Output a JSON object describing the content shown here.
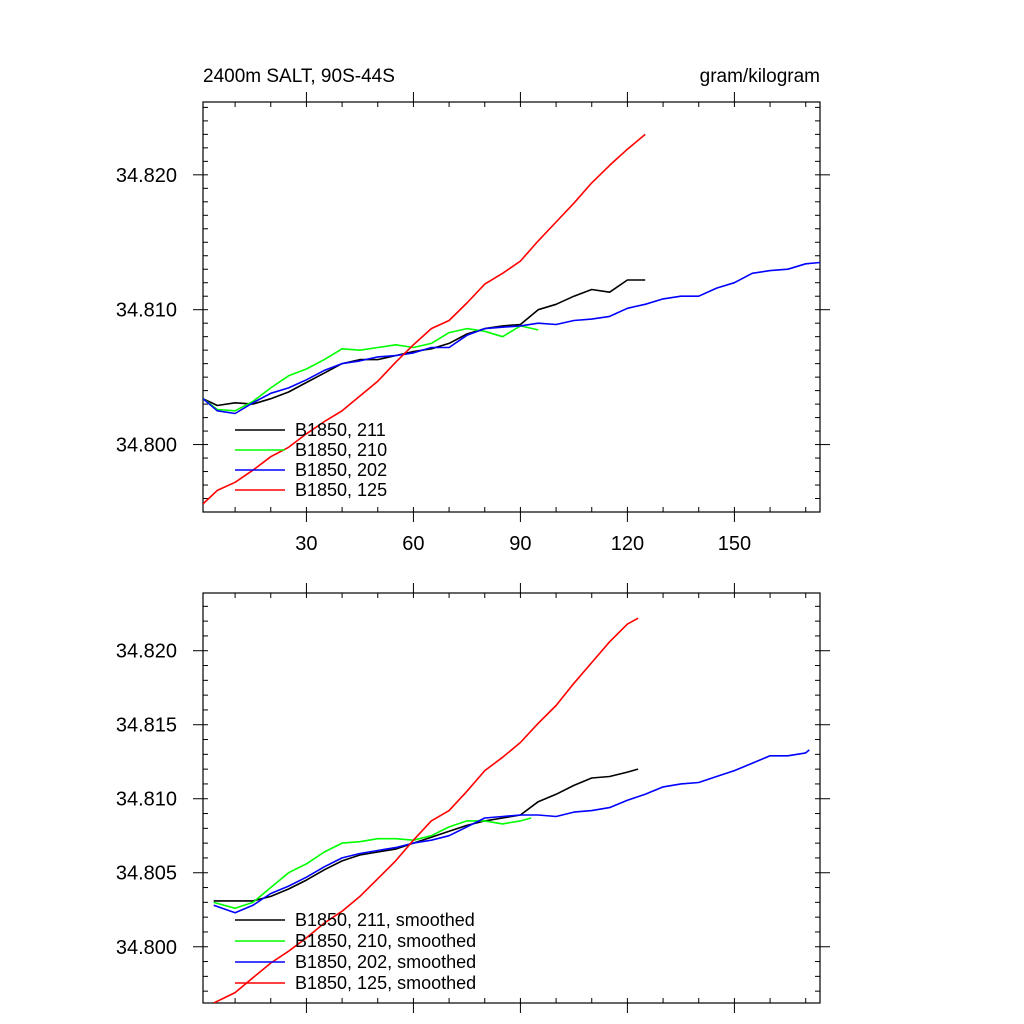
{
  "figure": {
    "title_left": "2400m SALT, 90S-44S",
    "title_right": "gram/kilogram"
  },
  "chart_data": [
    {
      "type": "line",
      "title": "2400m SALT, 90S-44S",
      "units": "gram/kilogram",
      "xlim": [
        1,
        174
      ],
      "ylim": [
        34.795,
        34.8254
      ],
      "x_ticks": [
        30,
        60,
        90,
        120,
        150
      ],
      "x_tick_labels": [
        "30",
        "60",
        "90",
        "120",
        "150"
      ],
      "y_ticks": [
        34.8,
        34.81,
        34.82
      ],
      "y_tick_labels": [
        "34.800",
        "34.810",
        "34.820"
      ],
      "legend_position": "bottom-left",
      "series": [
        {
          "name": "B1850, 211",
          "color": "#000000",
          "x": [
            1,
            5,
            10,
            15,
            20,
            25,
            30,
            35,
            40,
            45,
            50,
            55,
            60,
            65,
            70,
            75,
            80,
            85,
            90,
            95,
            100,
            105,
            110,
            115,
            120,
            125
          ],
          "y": [
            34.8034,
            34.8029,
            34.8031,
            34.803,
            34.8034,
            34.8039,
            34.8046,
            34.8053,
            34.806,
            34.8063,
            34.8063,
            34.8066,
            34.8069,
            34.8071,
            34.8075,
            34.8082,
            34.8086,
            34.8088,
            34.8089,
            34.81,
            34.8104,
            34.811,
            34.8115,
            34.8113,
            34.8122,
            34.8122
          ]
        },
        {
          "name": "B1850, 210",
          "color": "#00ff00",
          "x": [
            1,
            5,
            10,
            15,
            20,
            25,
            30,
            35,
            40,
            45,
            50,
            55,
            60,
            65,
            70,
            75,
            80,
            85,
            90,
            95
          ],
          "y": [
            34.8034,
            34.8026,
            34.8025,
            34.8032,
            34.8042,
            34.8051,
            34.8056,
            34.8063,
            34.8071,
            34.807,
            34.8072,
            34.8074,
            34.8072,
            34.8075,
            34.8083,
            34.8086,
            34.8084,
            34.808,
            34.8088,
            34.8085
          ]
        },
        {
          "name": "B1850, 202",
          "color": "#0000ff",
          "x": [
            1,
            5,
            10,
            15,
            20,
            25,
            30,
            35,
            40,
            45,
            50,
            55,
            60,
            65,
            70,
            75,
            80,
            85,
            90,
            95,
            100,
            105,
            110,
            115,
            120,
            125,
            130,
            135,
            140,
            145,
            150,
            155,
            160,
            165,
            170,
            174
          ],
          "y": [
            34.8034,
            34.8025,
            34.8023,
            34.8031,
            34.8038,
            34.8042,
            34.8048,
            34.8055,
            34.806,
            34.8062,
            34.8065,
            34.8066,
            34.8068,
            34.8072,
            34.8072,
            34.8081,
            34.8086,
            34.8087,
            34.8088,
            34.809,
            34.8089,
            34.8092,
            34.8093,
            34.8095,
            34.8101,
            34.8104,
            34.8108,
            34.811,
            34.811,
            34.8116,
            34.812,
            34.8127,
            34.8129,
            34.813,
            34.8134,
            34.8135
          ]
        },
        {
          "name": "B1850, 125",
          "color": "#ff0000",
          "x": [
            1,
            5,
            10,
            15,
            20,
            25,
            30,
            35,
            40,
            45,
            50,
            55,
            60,
            65,
            70,
            75,
            80,
            85,
            90,
            95,
            100,
            105,
            110,
            115,
            120,
            125
          ],
          "y": [
            34.7956,
            34.7966,
            34.7972,
            34.7981,
            34.7991,
            34.7998,
            34.8008,
            34.8017,
            34.8025,
            34.8036,
            34.8047,
            34.8061,
            34.8074,
            34.8086,
            34.8092,
            34.8105,
            34.8119,
            34.8127,
            34.8136,
            34.8151,
            34.8165,
            34.8179,
            34.8194,
            34.8207,
            34.8219,
            34.823
          ]
        }
      ]
    },
    {
      "type": "line",
      "xlim": [
        1,
        174
      ],
      "ylim": [
        34.7962,
        34.8239
      ],
      "x_ticks": [
        30,
        60,
        90,
        120,
        150
      ],
      "y_ticks": [
        34.8,
        34.805,
        34.81,
        34.815,
        34.82
      ],
      "y_tick_labels": [
        "34.800",
        "34.805",
        "34.810",
        "34.815",
        "34.820"
      ],
      "legend_position": "bottom-left",
      "series": [
        {
          "name": "B1850, 211, smoothed",
          "color": "#000000",
          "x": [
            4,
            10,
            15,
            20,
            25,
            30,
            35,
            40,
            45,
            50,
            55,
            60,
            65,
            70,
            75,
            80,
            85,
            90,
            95,
            100,
            105,
            110,
            115,
            120,
            123
          ],
          "y": [
            34.8031,
            34.8031,
            34.8031,
            34.8034,
            34.8039,
            34.8045,
            34.8052,
            34.8058,
            34.8062,
            34.8064,
            34.8066,
            34.807,
            34.8074,
            34.8078,
            34.8082,
            34.8085,
            34.8087,
            34.8089,
            34.8098,
            34.8103,
            34.8109,
            34.8114,
            34.8115,
            34.8118,
            34.812
          ]
        },
        {
          "name": "B1850, 210, smoothed",
          "color": "#00ff00",
          "x": [
            4,
            10,
            15,
            20,
            25,
            30,
            35,
            40,
            45,
            50,
            55,
            60,
            65,
            70,
            75,
            80,
            85,
            90,
            93
          ],
          "y": [
            34.803,
            34.8026,
            34.803,
            34.804,
            34.805,
            34.8056,
            34.8064,
            34.807,
            34.8071,
            34.8073,
            34.8073,
            34.8072,
            34.8075,
            34.8081,
            34.8085,
            34.8085,
            34.8083,
            34.8085,
            34.8087
          ]
        },
        {
          "name": "B1850, 202, smoothed",
          "color": "#0000ff",
          "x": [
            4,
            10,
            15,
            20,
            25,
            30,
            35,
            40,
            45,
            50,
            55,
            60,
            65,
            70,
            75,
            80,
            85,
            90,
            95,
            100,
            105,
            110,
            115,
            120,
            125,
            130,
            135,
            140,
            145,
            150,
            155,
            160,
            165,
            170,
            171
          ],
          "y": [
            34.8028,
            34.8023,
            34.8028,
            34.8036,
            34.8041,
            34.8047,
            34.8054,
            34.806,
            34.8063,
            34.8065,
            34.8067,
            34.807,
            34.8072,
            34.8075,
            34.8081,
            34.8087,
            34.8088,
            34.8089,
            34.8089,
            34.8088,
            34.8091,
            34.8092,
            34.8094,
            34.8099,
            34.8103,
            34.8108,
            34.811,
            34.8111,
            34.8115,
            34.8119,
            34.8124,
            34.8129,
            34.8129,
            34.8131,
            34.8133
          ]
        },
        {
          "name": "B1850, 125, smoothed",
          "color": "#ff0000",
          "x": [
            4,
            10,
            15,
            20,
            25,
            30,
            35,
            40,
            45,
            50,
            55,
            60,
            65,
            70,
            75,
            80,
            85,
            90,
            95,
            100,
            105,
            110,
            115,
            120,
            123
          ],
          "y": [
            34.7962,
            34.7969,
            34.7979,
            34.7989,
            34.7997,
            34.8006,
            34.8016,
            34.8024,
            34.8034,
            34.8046,
            34.8058,
            34.8072,
            34.8085,
            34.8092,
            34.8105,
            34.8119,
            34.8128,
            34.8138,
            34.8151,
            34.8163,
            34.8178,
            34.8192,
            34.8206,
            34.8218,
            34.8222
          ]
        }
      ]
    }
  ]
}
